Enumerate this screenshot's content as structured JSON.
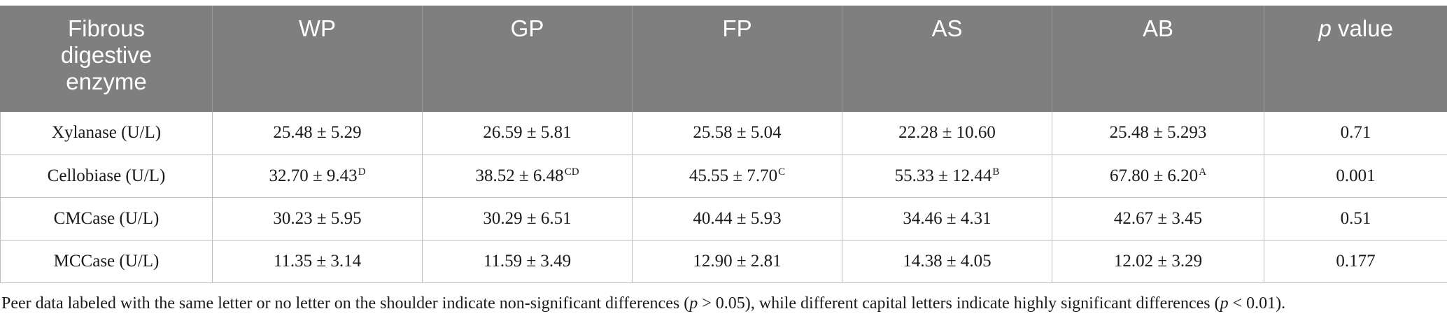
{
  "table": {
    "headers": [
      "Fibrous digestive enzyme",
      "WP",
      "GP",
      "FP",
      "AS",
      "AB",
      "p value"
    ],
    "header_p_letter": "p",
    "header_p_rest": " value",
    "rows": [
      {
        "label": "Xylanase (U/L)",
        "cells": [
          {
            "value": "25.48 ± 5.29",
            "sup": ""
          },
          {
            "value": "26.59 ± 5.81",
            "sup": ""
          },
          {
            "value": "25.58 ± 5.04",
            "sup": ""
          },
          {
            "value": "22.28 ± 10.60",
            "sup": ""
          },
          {
            "value": "25.48 ± 5.293",
            "sup": ""
          }
        ],
        "p": "0.71"
      },
      {
        "label": "Cellobiase (U/L)",
        "cells": [
          {
            "value": "32.70 ± 9.43",
            "sup": "D"
          },
          {
            "value": "38.52 ± 6.48",
            "sup": "CD"
          },
          {
            "value": "45.55 ± 7.70",
            "sup": "C"
          },
          {
            "value": "55.33 ± 12.44",
            "sup": "B"
          },
          {
            "value": "67.80 ± 6.20",
            "sup": "A"
          }
        ],
        "p": "0.001"
      },
      {
        "label": "CMCase (U/L)",
        "cells": [
          {
            "value": "30.23 ± 5.95",
            "sup": ""
          },
          {
            "value": "30.29 ± 6.51",
            "sup": ""
          },
          {
            "value": "40.44 ± 5.93",
            "sup": ""
          },
          {
            "value": "34.46 ± 4.31",
            "sup": ""
          },
          {
            "value": "42.67 ± 3.45",
            "sup": ""
          }
        ],
        "p": "0.51"
      },
      {
        "label": "MCCase (U/L)",
        "cells": [
          {
            "value": "11.35 ± 3.14",
            "sup": ""
          },
          {
            "value": "11.59 ± 3.49",
            "sup": ""
          },
          {
            "value": "12.90 ± 2.81",
            "sup": ""
          },
          {
            "value": "14.38 ± 4.05",
            "sup": ""
          },
          {
            "value": "12.02 ± 3.29",
            "sup": ""
          }
        ],
        "p": "0.177"
      }
    ]
  },
  "footnote": {
    "part1": "Peer data labeled with the same letter or no letter on the shoulder indicate non-significant differences (",
    "p1": "p",
    "part2": " > 0.05), while different capital letters indicate highly significant differences (",
    "p2": "p",
    "part3": " < 0.01)."
  }
}
